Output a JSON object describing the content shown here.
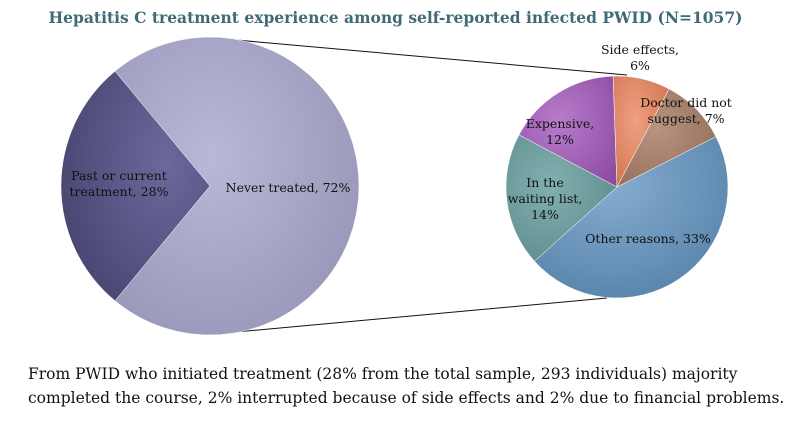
{
  "chart_data": [
    {
      "type": "pie",
      "title": "Hepatitis C treatment experience among self-reported infected PWID (N=1057)",
      "slices": [
        {
          "label": "Never treated, 72%",
          "value": 72,
          "color": "#a7a6c8"
        },
        {
          "label": "Past or current treatment, 28%",
          "value": 28,
          "color": "#5d5b8c"
        }
      ]
    },
    {
      "type": "pie",
      "slices": [
        {
          "label": "Other reasons, 33%",
          "value": 33,
          "color": "#6a94b8"
        },
        {
          "label": "In the waiting list, 14%",
          "value": 14,
          "color": "#6e9c9c"
        },
        {
          "label": "Expensive, 12%",
          "value": 12,
          "color": "#a060b4"
        },
        {
          "label": "Side effects, 6%",
          "value": 6,
          "color": "#e08060"
        },
        {
          "label": "Doctor did not suggest, 7%",
          "value": 7,
          "color": "#a57e67"
        }
      ]
    }
  ],
  "caption": "From PWID who initiated treatment (28% from the total sample, 293 individuals) majority completed the course, 2% interrupted because of side effects and 2% due to financial problems."
}
